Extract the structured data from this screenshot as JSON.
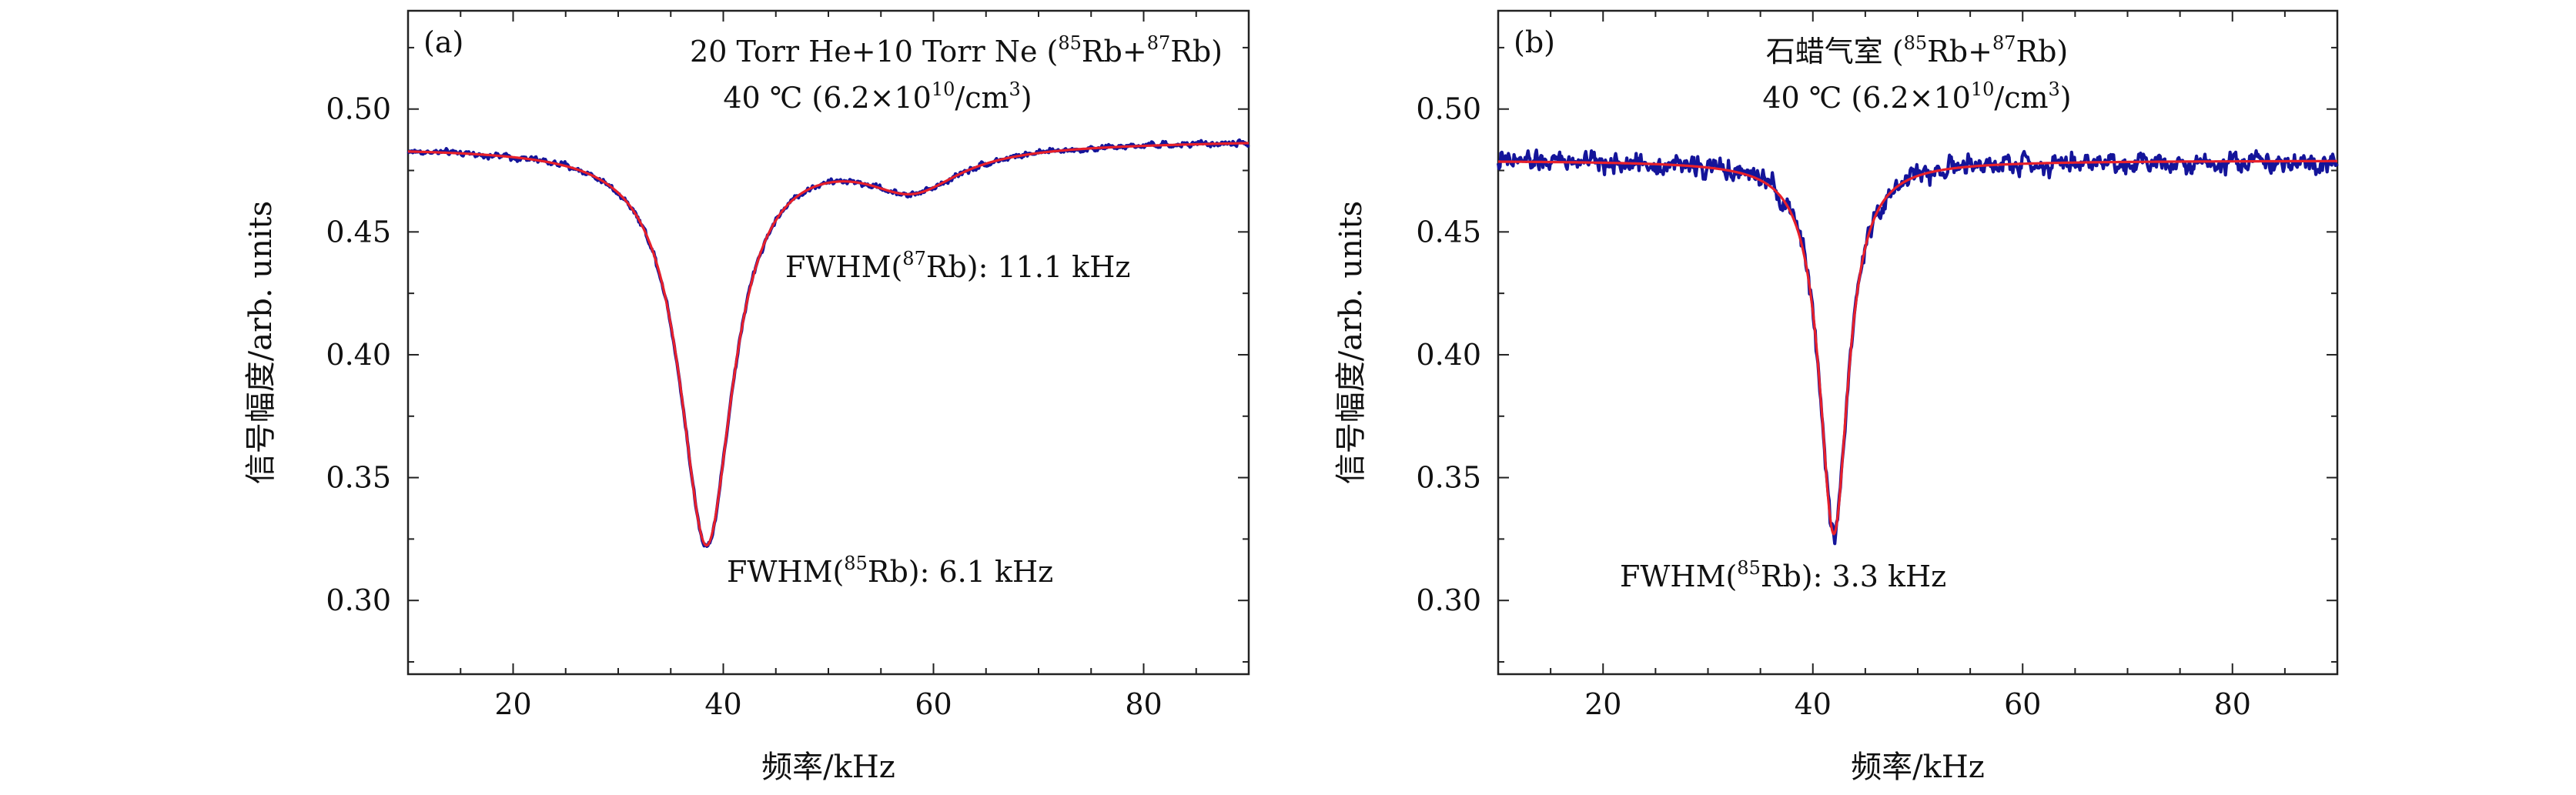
{
  "chart_data": [
    {
      "type": "line",
      "panel_label": "(a)",
      "title": "20 Torr He+10 Torr Ne (",
      "title_parts": {
        "pre": "20 Torr He+10 Torr Ne (",
        "sup1": "85",
        "mid": "Rb+",
        "sup2": "87",
        "post": "Rb)"
      },
      "subtitle_parts": {
        "pre": "40 ℃ (6.2×10",
        "sup1": "10",
        "mid": "/cm",
        "sup2": "3",
        "post": ")"
      },
      "xlabel": "频率/kHz",
      "ylabel": "信号幅度/arb. units",
      "xlim": [
        10,
        90
      ],
      "ylim": [
        0.27,
        0.54
      ],
      "x_ticks": [
        20,
        40,
        60,
        80
      ],
      "y_ticks": [
        0.3,
        0.35,
        0.4,
        0.45,
        0.5
      ],
      "y_tick_labels": [
        "0.30",
        "0.35",
        "0.40",
        "0.45",
        "0.50"
      ],
      "annotations": [
        {
          "pre": "FWHM(",
          "sup": "87",
          "post": "Rb): 11.1 kHz"
        },
        {
          "pre": "FWHM(",
          "sup": "85",
          "post": "Rb): 6.1 kHz"
        }
      ],
      "series": [
        {
          "name": "measured",
          "color": "#14149a",
          "model": {
            "baseline": 0.486,
            "slope": 3e-05,
            "peaks": [
              {
                "center": 38.4,
                "depth": 0.162,
                "fwhm": 6.1
              },
              {
                "center": 58.0,
                "depth": 0.017,
                "fwhm": 11.1
              }
            ]
          },
          "noise": 0.0013
        },
        {
          "name": "fit",
          "color": "#e8202a",
          "model": {
            "baseline": 0.486,
            "slope": 3e-05,
            "peaks": [
              {
                "center": 38.4,
                "depth": 0.162,
                "fwhm": 6.1
              },
              {
                "center": 58.0,
                "depth": 0.017,
                "fwhm": 11.1
              }
            ]
          },
          "noise": 0
        }
      ]
    },
    {
      "type": "line",
      "panel_label": "(b)",
      "title_parts": {
        "pre": "石蜡气室 (",
        "sup1": "85",
        "mid": "Rb+",
        "sup2": "87",
        "post": "Rb)"
      },
      "subtitle_parts": {
        "pre": "40 ℃ (6.2×10",
        "sup1": "10",
        "mid": "/cm",
        "sup2": "3",
        "post": ")"
      },
      "xlabel": "频率/kHz",
      "ylabel": "信号幅度/arb. units",
      "xlim": [
        10,
        90
      ],
      "ylim": [
        0.27,
        0.54
      ],
      "x_ticks": [
        20,
        40,
        60,
        80
      ],
      "y_ticks": [
        0.3,
        0.35,
        0.4,
        0.45,
        0.5
      ],
      "y_tick_labels": [
        "0.30",
        "0.35",
        "0.40",
        "0.45",
        "0.50"
      ],
      "annotations": [
        {
          "pre": "FWHM(",
          "sup": "85",
          "post": "Rb): 3.3 kHz"
        }
      ],
      "series": [
        {
          "name": "measured",
          "color": "#14149a",
          "model": {
            "baseline": 0.479,
            "slope": 0.0,
            "peaks": [
              {
                "center": 42.0,
                "depth": 0.152,
                "fwhm": 3.3
              }
            ]
          },
          "noise": 0.0045
        },
        {
          "name": "fit",
          "color": "#e8202a",
          "model": {
            "baseline": 0.479,
            "slope": 0.0,
            "peaks": [
              {
                "center": 42.0,
                "depth": 0.152,
                "fwhm": 3.3
              }
            ]
          },
          "noise": 0
        }
      ]
    }
  ]
}
